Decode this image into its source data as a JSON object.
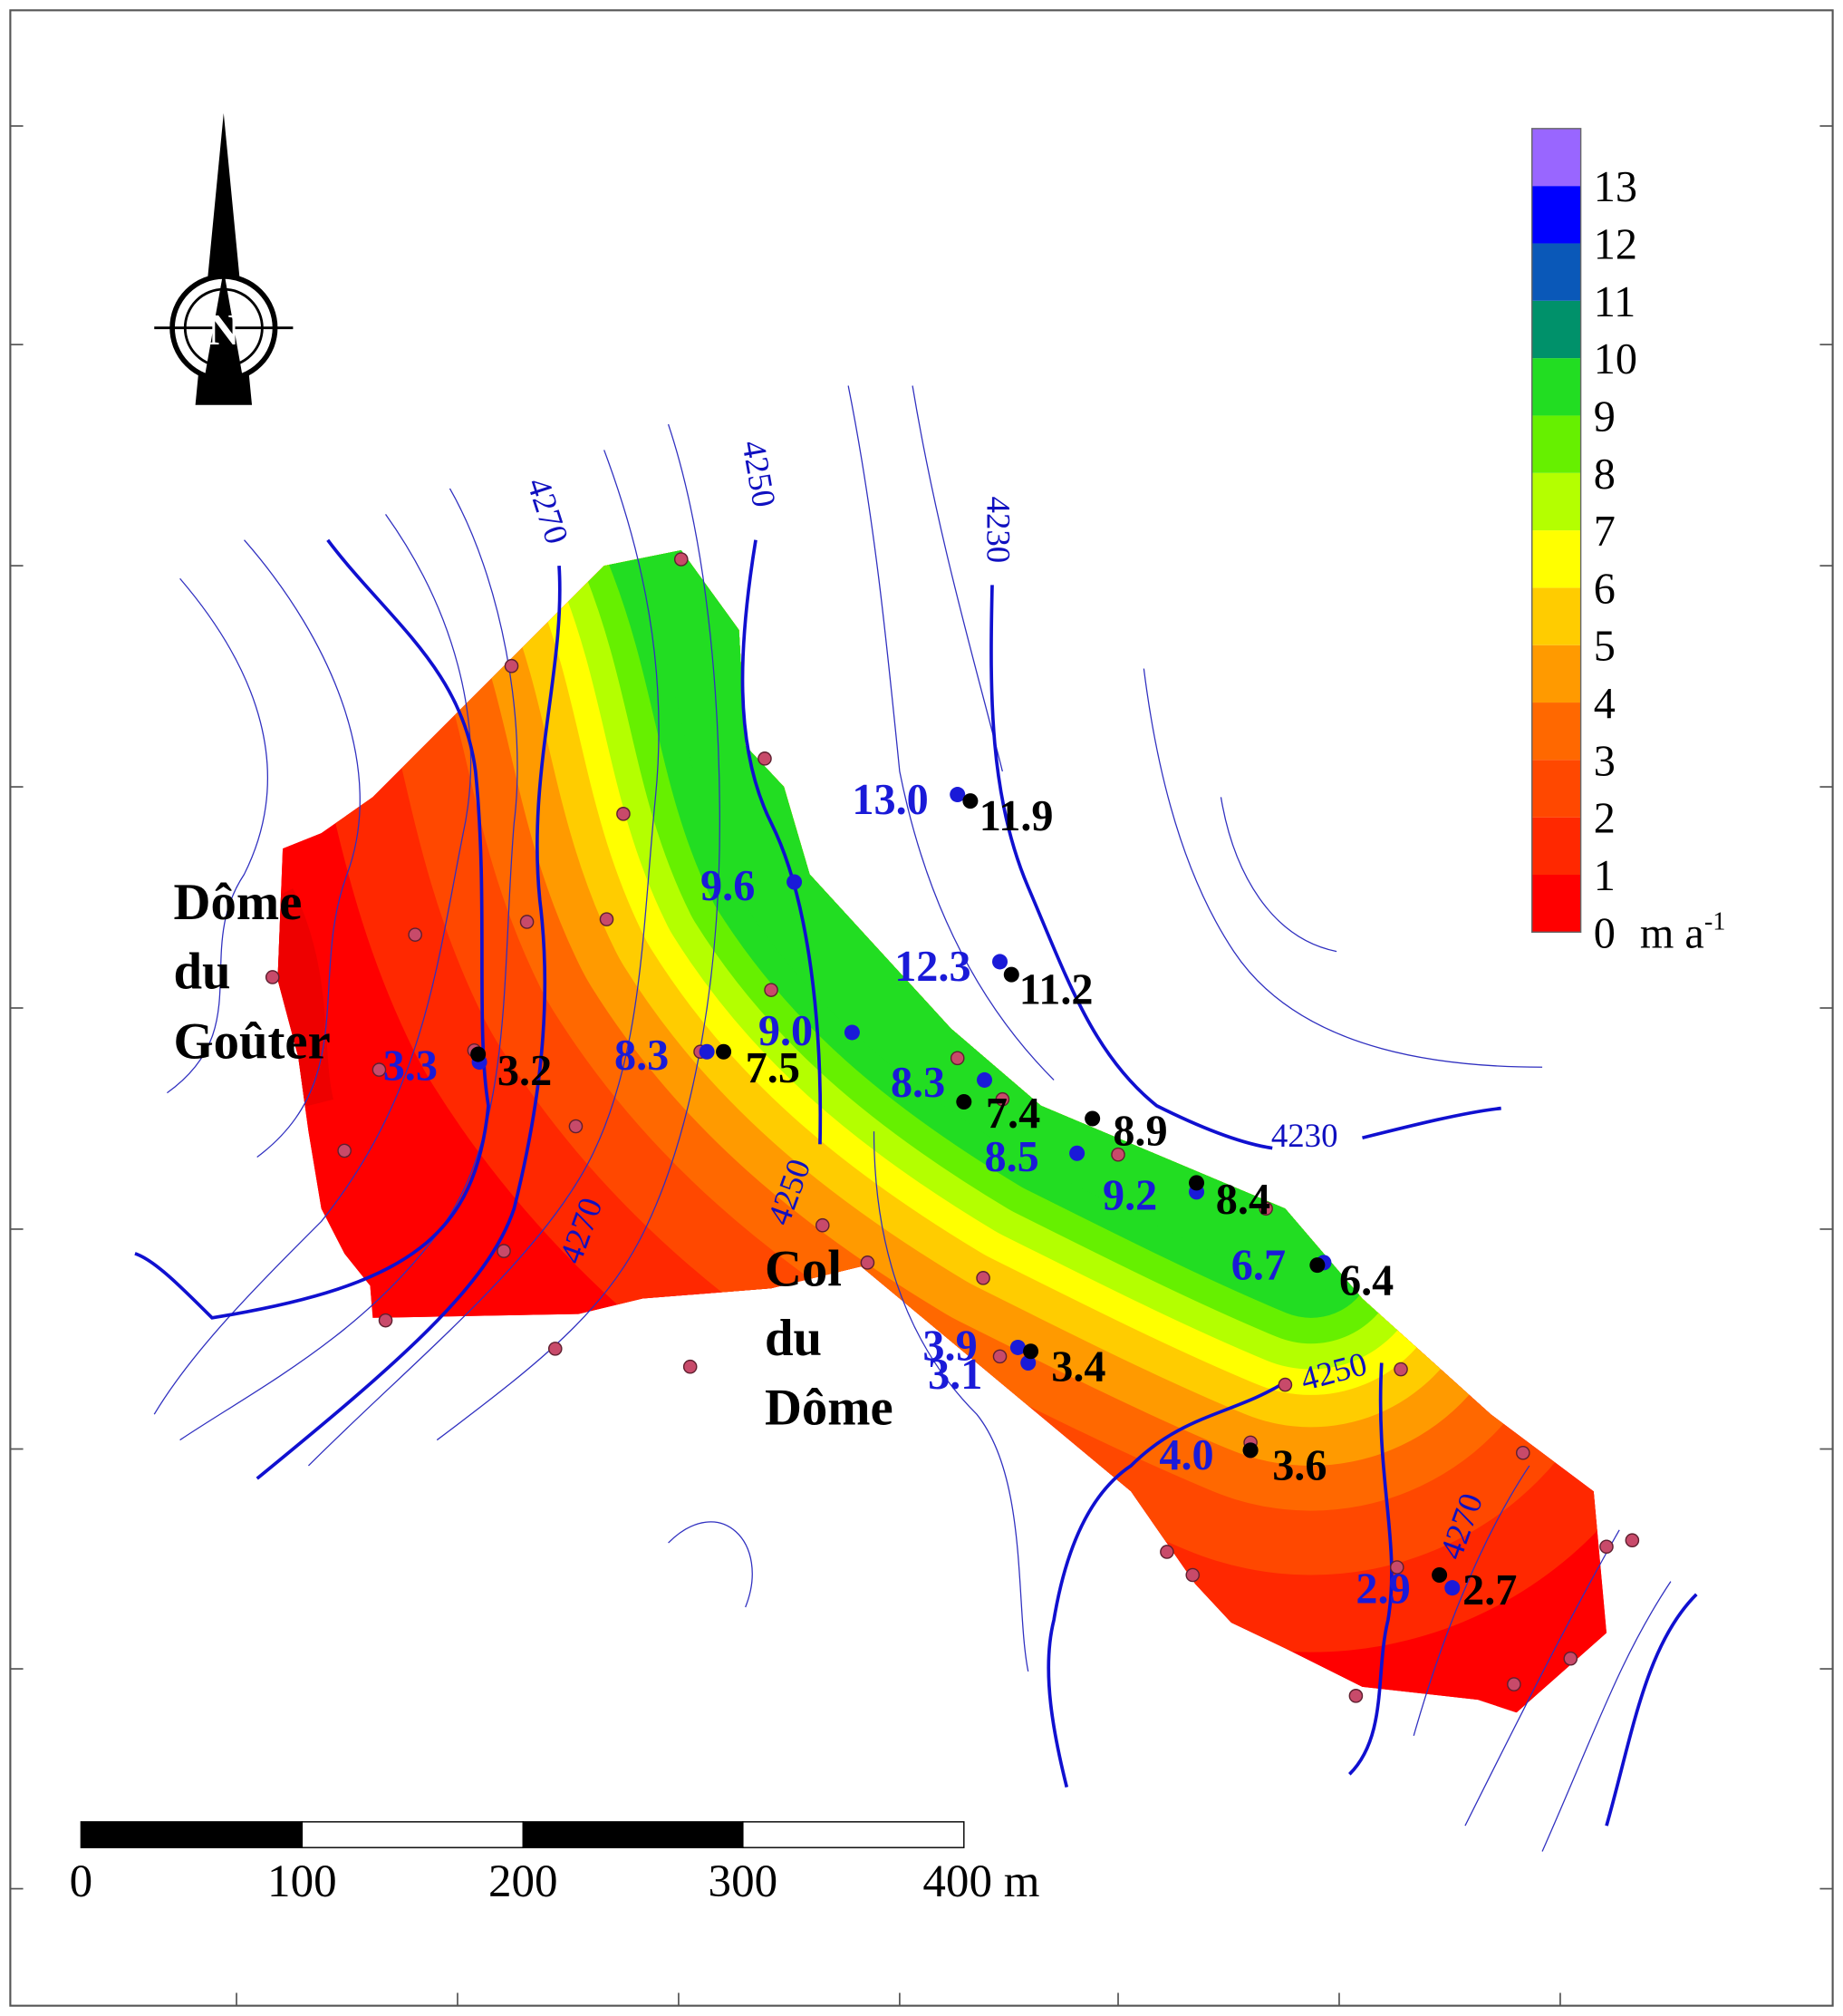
{
  "legend": {
    "levels": [
      0,
      1,
      2,
      3,
      4,
      5,
      6,
      7,
      8,
      9,
      10,
      11,
      12,
      13
    ],
    "colors": [
      "#ff0000",
      "#ff2800",
      "#ff4800",
      "#ff6800",
      "#ff9a00",
      "#ffcc00",
      "#ffff00",
      "#b4ff00",
      "#66f000",
      "#22dd22",
      "#00916a",
      "#0a58b8",
      "#0000ff",
      "#9966ff"
    ],
    "unit": "m a",
    "unit_sup": "-1"
  },
  "north": "N",
  "places": [
    [
      "Dôme",
      "du",
      "Goûter"
    ],
    [
      "Col",
      "du",
      "Dôme"
    ]
  ],
  "contour_labels": [
    "4270",
    "4250",
    "4230",
    "4270",
    "4250",
    "4230",
    "4250",
    "4270"
  ],
  "blue_labels": {
    "color": "#1a1ad8",
    "labels": [
      "13.0",
      "9.6",
      "12.3",
      "9.0",
      "8.3",
      "3.3",
      "8.3",
      "8.5",
      "9.2",
      "6.7",
      "3.9",
      "3.1",
      "4.0",
      "2.9"
    ]
  },
  "black_labels": {
    "color": "#000000",
    "labels": [
      "11.9",
      "11.2",
      "7.5",
      "3.2",
      "7.4",
      "8.9",
      "8.4",
      "6.4",
      "3.4",
      "3.6",
      "2.7"
    ]
  },
  "scale_bar": {
    "labels": [
      "0",
      "100",
      "200",
      "300",
      "400 m"
    ]
  }
}
